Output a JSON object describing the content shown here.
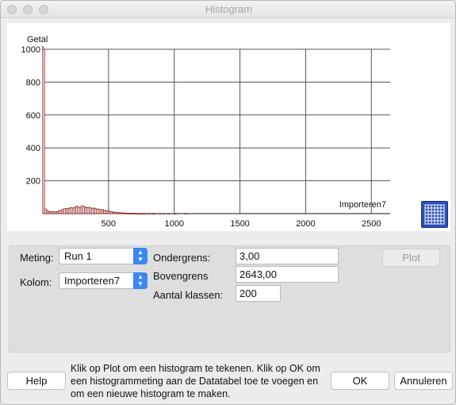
{
  "window": {
    "title": "Histogram"
  },
  "chart_data": {
    "type": "bar",
    "ylabel": "Getal",
    "xlabel": "Importeren7",
    "xlim": [
      0,
      2643
    ],
    "ylim": [
      0,
      1000
    ],
    "x_ticks": [
      500,
      1000,
      1500,
      2000,
      2500
    ],
    "y_ticks": [
      200,
      400,
      600,
      800,
      1000
    ],
    "bin_width": 13.2,
    "grid": true,
    "color": "#8b1a1a",
    "values": [
      1000,
      28,
      18,
      14,
      10,
      12,
      11,
      10,
      13,
      16,
      20,
      25,
      30,
      30,
      32,
      34,
      36,
      34,
      38,
      45,
      40,
      35,
      48,
      42,
      40,
      36,
      38,
      35,
      30,
      34,
      30,
      26,
      28,
      22,
      24,
      20,
      18,
      16,
      14,
      12,
      10,
      8,
      7,
      6,
      5,
      4,
      4,
      3,
      3,
      2,
      2,
      2,
      2,
      2,
      1,
      1,
      1,
      1,
      1,
      1,
      0,
      1,
      0,
      1,
      1,
      0,
      0,
      1,
      0,
      1,
      0,
      0,
      1,
      0,
      0,
      0,
      1,
      0,
      0,
      0,
      0,
      0,
      1,
      0,
      0,
      0,
      0,
      0,
      0,
      0,
      0,
      0,
      0,
      0,
      0,
      0,
      0,
      0,
      0,
      0,
      0,
      0,
      0,
      0,
      0,
      0,
      0,
      0,
      0,
      0,
      0,
      0,
      0,
      0,
      0,
      0,
      0,
      0,
      0,
      0,
      0,
      0,
      0,
      0,
      0,
      0,
      0,
      0,
      0,
      0,
      0,
      0,
      0,
      0,
      0,
      0,
      0,
      0,
      0,
      0,
      0,
      0,
      0,
      0,
      0,
      0,
      0,
      0,
      0,
      0,
      0,
      0,
      0,
      0,
      0,
      0,
      0,
      0,
      0,
      0,
      0,
      0,
      0,
      0,
      0,
      0,
      0,
      0,
      0,
      0,
      0,
      0,
      0,
      0,
      0,
      0,
      0,
      0,
      0,
      0,
      0,
      0,
      0,
      0,
      0,
      0,
      0,
      0,
      0,
      0,
      0,
      0,
      0,
      0,
      0,
      0,
      0,
      0,
      0,
      0,
      0,
      0,
      0,
      0,
      0
    ]
  },
  "form": {
    "meting_label": "Meting:",
    "meting_value": "Run 1",
    "kolom_label": "Kolom:",
    "kolom_value": "Importeren7",
    "ondergrens_label": "Ondergrens:",
    "ondergrens_value": "3,00",
    "bovengrens_label": "Bovengrens",
    "bovengrens_value": "2643,00",
    "klassen_label": "Aantal klassen:",
    "klassen_value": "200",
    "plot_label": "Plot"
  },
  "footer": {
    "help_label": "Help",
    "help_text": "Klik op Plot om een histogram te tekenen. Klik op OK om een histogrammeting aan de Datatabel toe te voegen en om een nieuwe histogram te maken.",
    "ok_label": "OK",
    "cancel_label": "Annuleren"
  },
  "icons": {
    "table_grid": "grid-table-icon"
  }
}
